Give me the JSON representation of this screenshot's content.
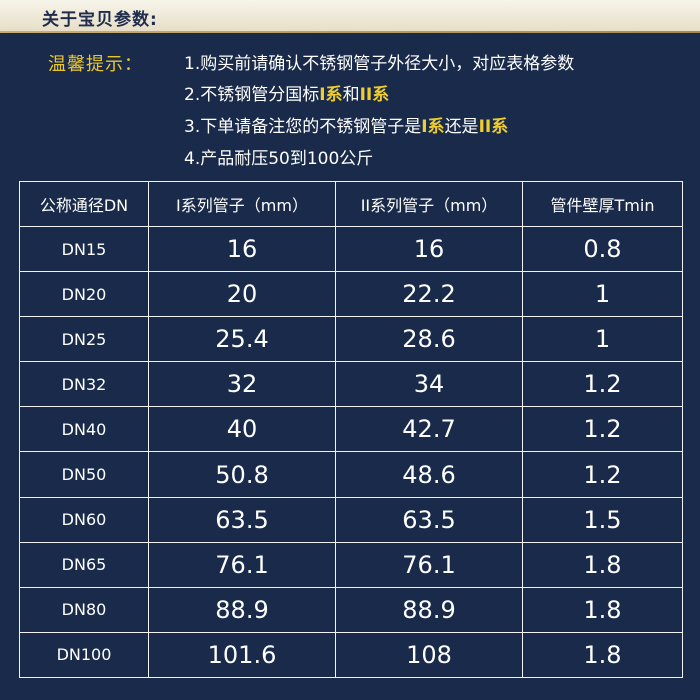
{
  "header": {
    "title": "关于宝贝参数:"
  },
  "tips": {
    "label": "温馨提示：",
    "line1": "1.购买前请确认不锈钢管子外径大小，对应表格参数",
    "line2_pre": "2.不锈钢管分国标",
    "line2_hl1": "I系",
    "line2_mid": "和",
    "line2_hl2": "II系",
    "line3_pre": "3.下单请备注您的不锈钢管子是",
    "line3_hl1": "I系",
    "line3_mid": "还是",
    "line3_hl2": "II系",
    "line4": "4.产品耐压50到100公斤"
  },
  "table": {
    "headers": [
      "公称通径DN",
      "I系列管子（mm）",
      "II系列管子（mm）",
      "管件壁厚Tmin"
    ],
    "rows": [
      [
        "DN15",
        "16",
        "16",
        "0.8"
      ],
      [
        "DN20",
        "20",
        "22.2",
        "1"
      ],
      [
        "DN25",
        "25.4",
        "28.6",
        "1"
      ],
      [
        "DN32",
        "32",
        "34",
        "1.2"
      ],
      [
        "DN40",
        "40",
        "42.7",
        "1.2"
      ],
      [
        "DN50",
        "50.8",
        "48.6",
        "1.2"
      ],
      [
        "DN60",
        "63.5",
        "63.5",
        "1.5"
      ],
      [
        "DN65",
        "76.1",
        "76.1",
        "1.8"
      ],
      [
        "DN80",
        "88.9",
        "88.9",
        "1.8"
      ],
      [
        "DN100",
        "101.6",
        "108",
        "1.8"
      ]
    ]
  },
  "colors": {
    "background": "#192a4a",
    "highlight": "#f0cd2e",
    "tips_label": "#e9c630",
    "header_bg": "#f7f4ea",
    "header_text": "#1f2c4c"
  }
}
